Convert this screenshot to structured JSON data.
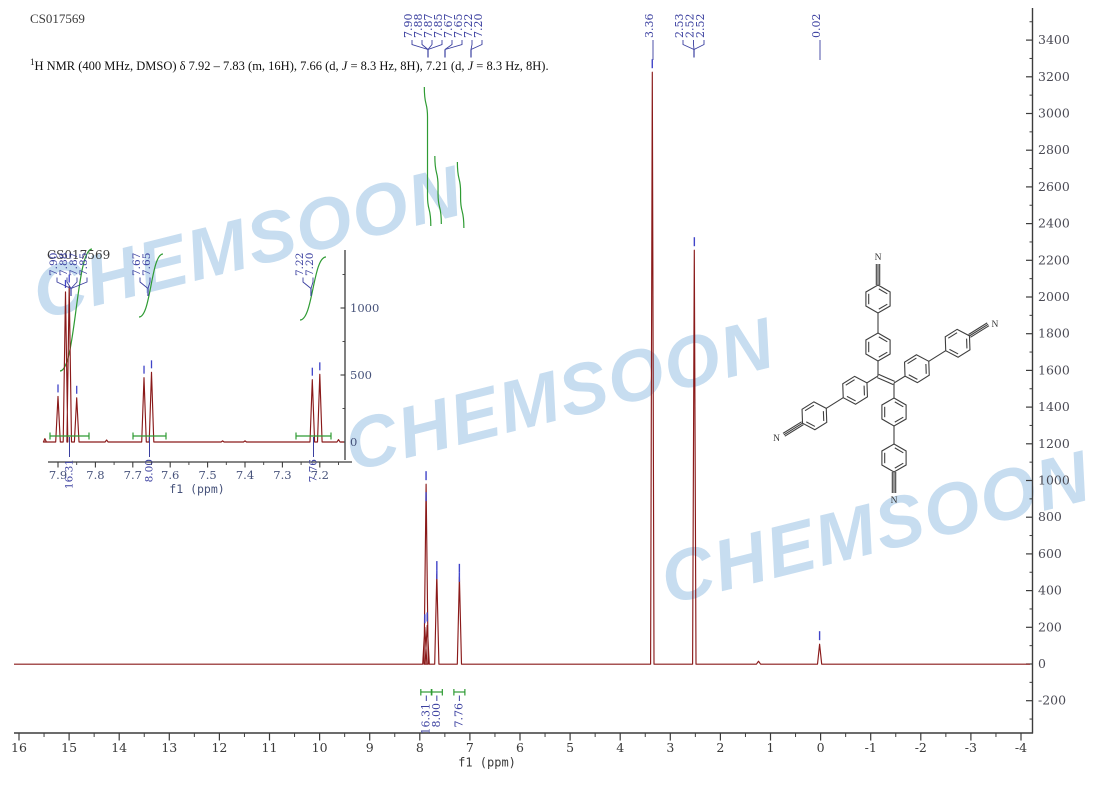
{
  "header": {
    "sample_id": "CS017569"
  },
  "caption": {
    "sup": "1",
    "part1": "H NMR (400 MHz, DMSO) δ 7.92 – 7.83 (m, 16H), 7.66 (d, ",
    "j": "J",
    "part2": " = 8.3 Hz, 8H), 7.21 (d, ",
    "part3": " = 8.3 Hz, 8H)."
  },
  "watermark": {
    "text": "CHEMSOON",
    "color": "#c7ddf0"
  },
  "structure": {
    "atom_label": "N"
  },
  "colors": {
    "spectrum": "#8a1a1a",
    "integral": "#2e9b33",
    "label_blue": "#3a3f9f",
    "marker_blue": "#4044c8",
    "axis": "#3c3c3c",
    "y_tick_label": "#4b4b55",
    "x_tick_label": "#3a3a3a",
    "inset_tick_label": "#46527a"
  },
  "chart_data": {
    "type": "line",
    "title": "CS017569",
    "xlabel": "f1 (ppm)",
    "x_range": [
      16,
      -4
    ],
    "y_range": [
      -200,
      3400
    ],
    "x_ticks": [
      16,
      15,
      14,
      13,
      12,
      11,
      10,
      9,
      8,
      7,
      6,
      5,
      4,
      3,
      2,
      1,
      0,
      -1,
      -2,
      -3,
      -4
    ],
    "y_ticks": [
      3400,
      3200,
      3000,
      2800,
      2600,
      2400,
      2200,
      2000,
      1800,
      1600,
      1400,
      1200,
      1000,
      800,
      600,
      400,
      200,
      0,
      -200
    ],
    "peaks": [
      {
        "ppm": 7.9,
        "intensity": 200
      },
      {
        "ppm": 7.875,
        "intensity": 980
      },
      {
        "ppm": 7.852,
        "intensity": 210
      },
      {
        "ppm": 7.66,
        "intensity": 490
      },
      {
        "ppm": 7.21,
        "intensity": 475
      },
      {
        "ppm": 3.36,
        "intensity": 3225
      },
      {
        "ppm": 2.52,
        "intensity": 2255
      },
      {
        "ppm": 1.24,
        "intensity": 15
      },
      {
        "ppm": 0.02,
        "intensity": 108
      }
    ],
    "peak_labels": [
      {
        "labels": [
          "7.90",
          "7.88",
          "7.87",
          "7.85"
        ]
      },
      {
        "labels": [
          "7.67",
          "7.65"
        ]
      },
      {
        "labels": [
          "7.22",
          "7.20"
        ]
      },
      {
        "labels": [
          "3.36"
        ]
      },
      {
        "labels": [
          "2.53",
          "2.52",
          "2.52"
        ]
      },
      {
        "labels": [
          "0.02"
        ]
      }
    ],
    "integrals": [
      {
        "label": "16.31",
        "ppm": 7.87
      },
      {
        "label": "8.00",
        "ppm": 7.66
      },
      {
        "label": "7.76",
        "ppm": 7.21
      }
    ],
    "inset": {
      "sample_id": "CS017569",
      "xlabel": "f1 (ppm)",
      "x_ticks": [
        7.9,
        7.8,
        7.7,
        7.6,
        7.5,
        7.4,
        7.3,
        7.2
      ],
      "y_ticks": [
        1000,
        500,
        0
      ],
      "peaks": [
        {
          "ppm": 7.935,
          "intensity": 25
        },
        {
          "ppm": 7.9,
          "intensity": 340
        },
        {
          "ppm": 7.88,
          "intensity": 1120
        },
        {
          "ppm": 7.87,
          "intensity": 1160
        },
        {
          "ppm": 7.85,
          "intensity": 330
        },
        {
          "ppm": 7.77,
          "intensity": 15
        },
        {
          "ppm": 7.67,
          "intensity": 480
        },
        {
          "ppm": 7.65,
          "intensity": 520
        },
        {
          "ppm": 7.46,
          "intensity": 8
        },
        {
          "ppm": 7.4,
          "intensity": 8
        },
        {
          "ppm": 7.22,
          "intensity": 465
        },
        {
          "ppm": 7.2,
          "intensity": 505
        },
        {
          "ppm": 7.15,
          "intensity": 18
        }
      ],
      "peak_labels": [
        {
          "labels": [
            "7.90",
            "7.88",
            "7.87",
            "7.85"
          ]
        },
        {
          "labels": [
            "7.67",
            "7.65"
          ]
        },
        {
          "labels": [
            "7.22",
            "7.20"
          ]
        }
      ],
      "integrals": [
        {
          "label": "16.31"
        },
        {
          "label": "8.00"
        },
        {
          "label": "7.76"
        }
      ]
    }
  }
}
